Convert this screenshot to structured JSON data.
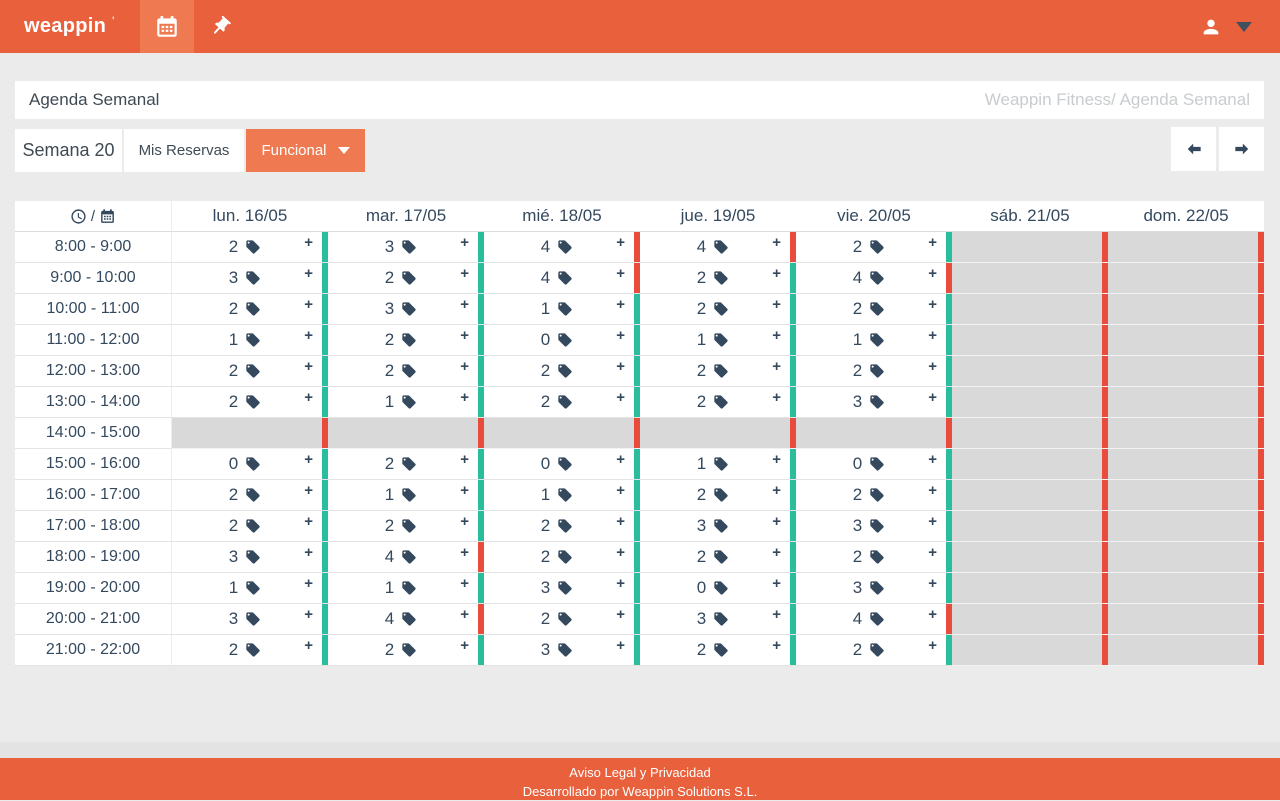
{
  "colors": {
    "orange": "#E8603C",
    "orange_light": "#EF7A52",
    "teal": "#2ABD9B",
    "red": "#E74C3C",
    "navy": "#34495E",
    "disabled_gray": "#D9D9D9"
  },
  "header": {
    "logo": "weappin"
  },
  "title_bar": {
    "title": "Agenda Semanal",
    "breadcrumb": "Weappin Fitness/ Agenda Semanal"
  },
  "toolbar": {
    "week": "Semana 20",
    "reservations": "Mis Reservas",
    "filter": "Funcional"
  },
  "table": {
    "time_header_separator": "/",
    "add_label": "+",
    "days": [
      "lun. 16/05",
      "mar. 17/05",
      "mié. 18/05",
      "jue. 19/05",
      "vie. 20/05",
      "sáb. 21/05",
      "dom. 22/05"
    ],
    "rows": [
      {
        "time": "8:00 - 9:00",
        "cells": [
          {
            "count": "2",
            "bar": "teal"
          },
          {
            "count": "3",
            "bar": "teal"
          },
          {
            "count": "4",
            "bar": "red"
          },
          {
            "count": "4",
            "bar": "red"
          },
          {
            "count": "2",
            "bar": "teal"
          },
          {
            "disabled": true,
            "bar": "red"
          },
          {
            "disabled": true,
            "bar": "red"
          }
        ]
      },
      {
        "time": "9:00 - 10:00",
        "cells": [
          {
            "count": "3",
            "bar": "teal"
          },
          {
            "count": "2",
            "bar": "teal"
          },
          {
            "count": "4",
            "bar": "red"
          },
          {
            "count": "2",
            "bar": "teal"
          },
          {
            "count": "4",
            "bar": "red"
          },
          {
            "disabled": true,
            "bar": "red"
          },
          {
            "disabled": true,
            "bar": "red"
          }
        ]
      },
      {
        "time": "10:00 - 11:00",
        "cells": [
          {
            "count": "2",
            "bar": "teal"
          },
          {
            "count": "3",
            "bar": "teal"
          },
          {
            "count": "1",
            "bar": "teal"
          },
          {
            "count": "2",
            "bar": "teal"
          },
          {
            "count": "2",
            "bar": "teal"
          },
          {
            "disabled": true,
            "bar": "red"
          },
          {
            "disabled": true,
            "bar": "red"
          }
        ]
      },
      {
        "time": "11:00 - 12:00",
        "cells": [
          {
            "count": "1",
            "bar": "teal"
          },
          {
            "count": "2",
            "bar": "teal"
          },
          {
            "count": "0",
            "bar": "teal"
          },
          {
            "count": "1",
            "bar": "teal"
          },
          {
            "count": "1",
            "bar": "teal"
          },
          {
            "disabled": true,
            "bar": "red"
          },
          {
            "disabled": true,
            "bar": "red"
          }
        ]
      },
      {
        "time": "12:00 - 13:00",
        "cells": [
          {
            "count": "2",
            "bar": "teal"
          },
          {
            "count": "2",
            "bar": "teal"
          },
          {
            "count": "2",
            "bar": "teal"
          },
          {
            "count": "2",
            "bar": "teal"
          },
          {
            "count": "2",
            "bar": "teal"
          },
          {
            "disabled": true,
            "bar": "red"
          },
          {
            "disabled": true,
            "bar": "red"
          }
        ]
      },
      {
        "time": "13:00 - 14:00",
        "cells": [
          {
            "count": "2",
            "bar": "teal"
          },
          {
            "count": "1",
            "bar": "teal"
          },
          {
            "count": "2",
            "bar": "teal"
          },
          {
            "count": "2",
            "bar": "teal"
          },
          {
            "count": "3",
            "bar": "teal"
          },
          {
            "disabled": true,
            "bar": "red"
          },
          {
            "disabled": true,
            "bar": "red"
          }
        ]
      },
      {
        "time": "14:00 - 15:00",
        "cells": [
          {
            "disabled": true,
            "bar": "red"
          },
          {
            "disabled": true,
            "bar": "red"
          },
          {
            "disabled": true,
            "bar": "red"
          },
          {
            "disabled": true,
            "bar": "red"
          },
          {
            "disabled": true,
            "bar": "red"
          },
          {
            "disabled": true,
            "bar": "red"
          },
          {
            "disabled": true,
            "bar": "red"
          }
        ]
      },
      {
        "time": "15:00 - 16:00",
        "cells": [
          {
            "count": "0",
            "bar": "teal"
          },
          {
            "count": "2",
            "bar": "teal"
          },
          {
            "count": "0",
            "bar": "teal"
          },
          {
            "count": "1",
            "bar": "teal"
          },
          {
            "count": "0",
            "bar": "teal"
          },
          {
            "disabled": true,
            "bar": "red"
          },
          {
            "disabled": true,
            "bar": "red"
          }
        ]
      },
      {
        "time": "16:00 - 17:00",
        "cells": [
          {
            "count": "2",
            "bar": "teal"
          },
          {
            "count": "1",
            "bar": "teal"
          },
          {
            "count": "1",
            "bar": "teal"
          },
          {
            "count": "2",
            "bar": "teal"
          },
          {
            "count": "2",
            "bar": "teal"
          },
          {
            "disabled": true,
            "bar": "red"
          },
          {
            "disabled": true,
            "bar": "red"
          }
        ]
      },
      {
        "time": "17:00 - 18:00",
        "cells": [
          {
            "count": "2",
            "bar": "teal"
          },
          {
            "count": "2",
            "bar": "teal"
          },
          {
            "count": "2",
            "bar": "teal"
          },
          {
            "count": "3",
            "bar": "teal"
          },
          {
            "count": "3",
            "bar": "teal"
          },
          {
            "disabled": true,
            "bar": "red"
          },
          {
            "disabled": true,
            "bar": "red"
          }
        ]
      },
      {
        "time": "18:00 - 19:00",
        "cells": [
          {
            "count": "3",
            "bar": "teal"
          },
          {
            "count": "4",
            "bar": "red"
          },
          {
            "count": "2",
            "bar": "teal"
          },
          {
            "count": "2",
            "bar": "teal"
          },
          {
            "count": "2",
            "bar": "teal"
          },
          {
            "disabled": true,
            "bar": "red"
          },
          {
            "disabled": true,
            "bar": "red"
          }
        ]
      },
      {
        "time": "19:00 - 20:00",
        "cells": [
          {
            "count": "1",
            "bar": "teal"
          },
          {
            "count": "1",
            "bar": "teal"
          },
          {
            "count": "3",
            "bar": "teal"
          },
          {
            "count": "0",
            "bar": "teal"
          },
          {
            "count": "3",
            "bar": "teal"
          },
          {
            "disabled": true,
            "bar": "red"
          },
          {
            "disabled": true,
            "bar": "red"
          }
        ]
      },
      {
        "time": "20:00 - 21:00",
        "cells": [
          {
            "count": "3",
            "bar": "teal"
          },
          {
            "count": "4",
            "bar": "red"
          },
          {
            "count": "2",
            "bar": "teal"
          },
          {
            "count": "3",
            "bar": "teal"
          },
          {
            "count": "4",
            "bar": "red"
          },
          {
            "disabled": true,
            "bar": "red"
          },
          {
            "disabled": true,
            "bar": "red"
          }
        ]
      },
      {
        "time": "21:00 - 22:00",
        "cells": [
          {
            "count": "2",
            "bar": "teal"
          },
          {
            "count": "2",
            "bar": "teal"
          },
          {
            "count": "3",
            "bar": "teal"
          },
          {
            "count": "2",
            "bar": "teal"
          },
          {
            "count": "2",
            "bar": "teal"
          },
          {
            "disabled": true,
            "bar": "red"
          },
          {
            "disabled": true,
            "bar": "red"
          }
        ]
      }
    ]
  },
  "footer": {
    "line1": "Aviso Legal y Privacidad",
    "line2": "Desarrollado por Weappin Solutions S.L."
  }
}
